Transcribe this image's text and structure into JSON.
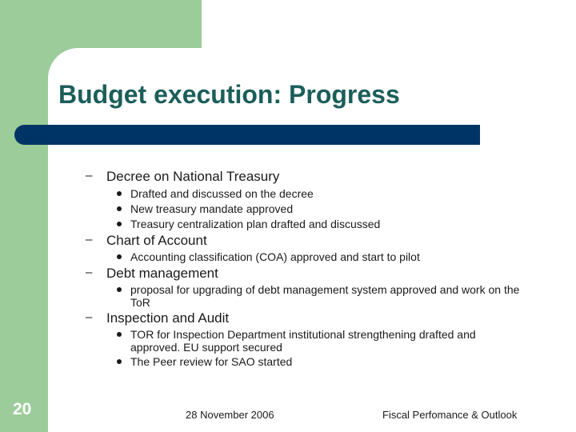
{
  "slide": {
    "title": "Budget execution: Progress",
    "number": "20",
    "footer_date": "28 November 2006",
    "footer_title": "Fiscal Perfomance & Outlook"
  },
  "colors": {
    "accent_green": "#9ccc9a",
    "title_bar": "#003466",
    "title_text": "#1b5e5a"
  },
  "sections": [
    {
      "heading": "Decree on National Treasury",
      "bullets": [
        "Drafted and discussed on the decree",
        "New treasury mandate approved",
        "Treasury centralization plan drafted and discussed"
      ]
    },
    {
      "heading": "Chart of Account",
      "bullets": [
        "Accounting classification (COA) approved and start to pilot"
      ]
    },
    {
      "heading": "Debt management",
      "bullets": [
        "proposal for upgrading of debt management system approved and work on the ToR"
      ]
    },
    {
      "heading": "Inspection and Audit",
      "bullets": [
        "TOR for Inspection Department institutional strengthening drafted and approved. EU support secured",
        "The Peer review for SAO started"
      ]
    }
  ]
}
